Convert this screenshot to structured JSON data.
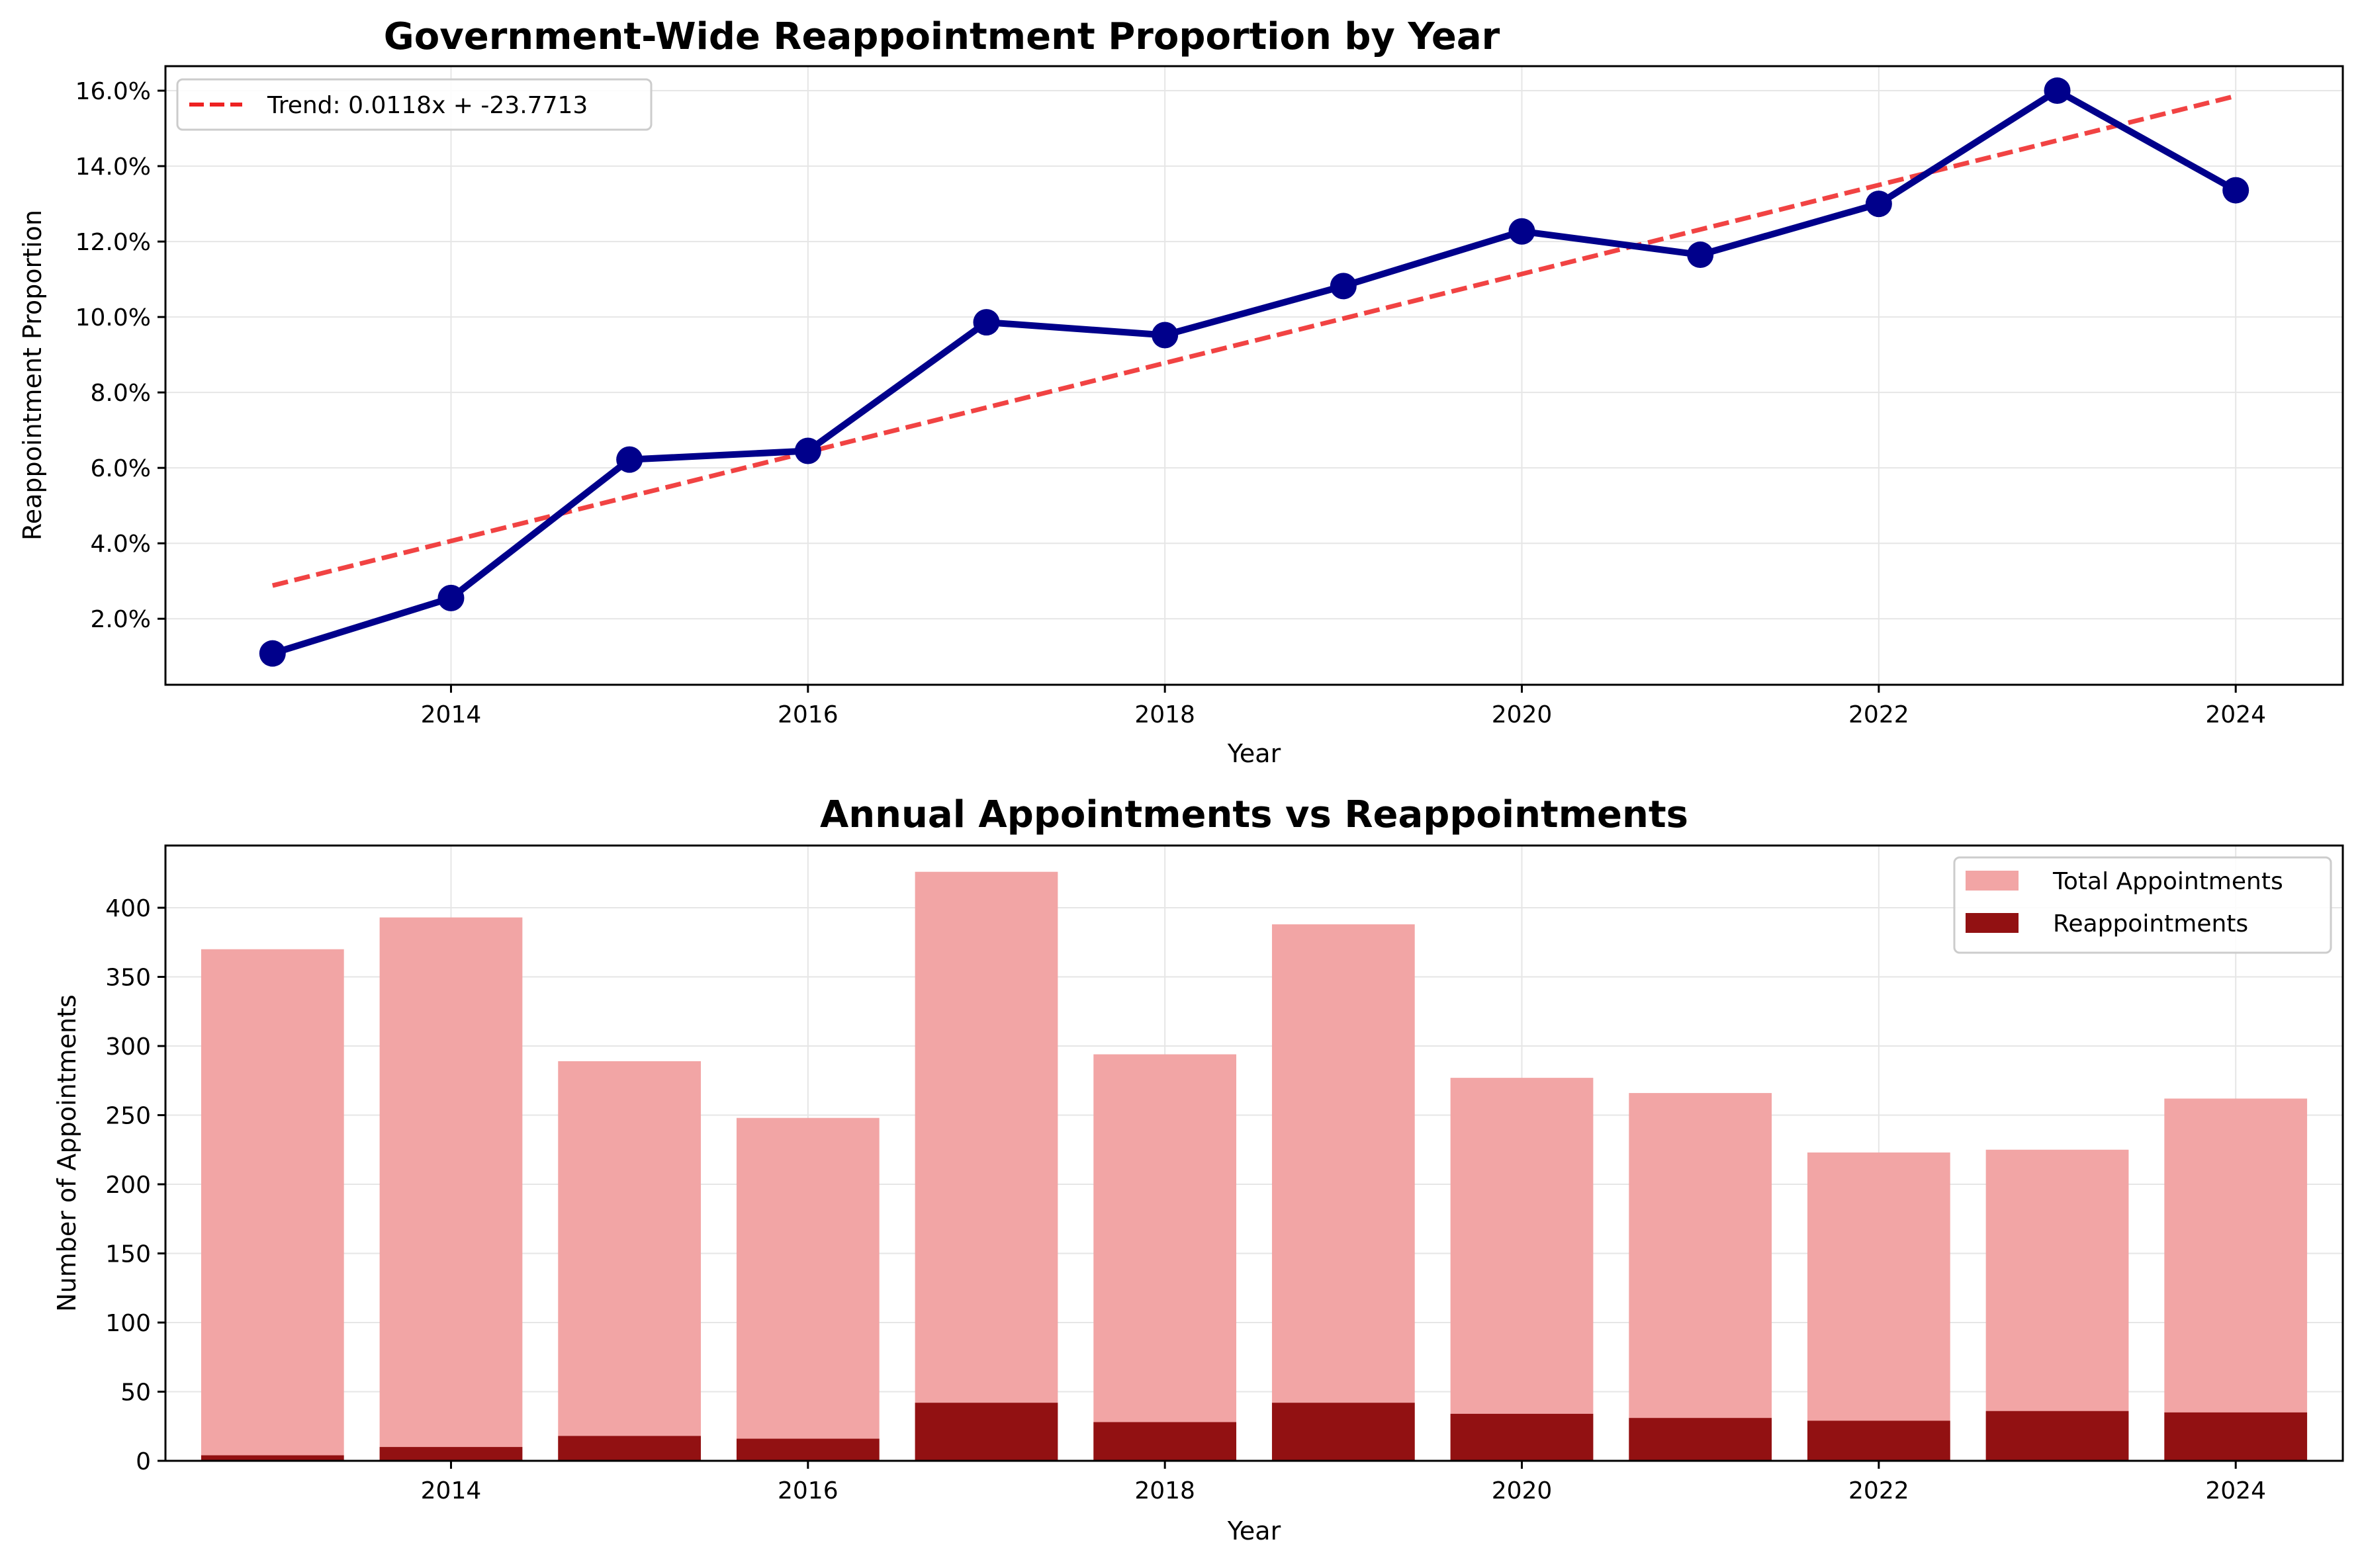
{
  "chart_data": [
    {
      "type": "line",
      "title": "Government-Wide Reappointment Proportion by Year",
      "xlabel": "Year",
      "ylabel": "Reappointment Proportion",
      "x": [
        2013,
        2014,
        2015,
        2016,
        2017,
        2018,
        2019,
        2020,
        2021,
        2022,
        2023,
        2024
      ],
      "xlim": [
        2012.4,
        2024.6
      ],
      "ylim": [
        0.0025,
        0.1665
      ],
      "xticks": [
        2014,
        2016,
        2018,
        2020,
        2022,
        2024
      ],
      "yticks": [
        0.02,
        0.04,
        0.06,
        0.08,
        0.1,
        0.12,
        0.14,
        0.16
      ],
      "yticklabels": [
        "2.0%",
        "4.0%",
        "6.0%",
        "8.0%",
        "10.0%",
        "12.0%",
        "14.0%",
        "16.0%"
      ],
      "grid": true,
      "legend_position": "top-left",
      "series": [
        {
          "values": [
            0.0108,
            0.0255,
            0.0622,
            0.0645,
            0.0986,
            0.0952,
            0.1082,
            0.1227,
            0.1165,
            0.13,
            0.16,
            0.1336
          ],
          "color": "#00008b",
          "style": "solid-with-markers"
        },
        {
          "name": "Trend: 0.0118x + -23.7713",
          "values": [
            0.0288,
            0.0406,
            0.0524,
            0.0642,
            0.076,
            0.0878,
            0.0996,
            0.1114,
            0.1232,
            0.135,
            0.1468,
            0.1586
          ],
          "color": "#ee2222",
          "style": "dashed"
        }
      ]
    },
    {
      "type": "bar",
      "title": "Annual Appointments vs Reappointments",
      "xlabel": "Year",
      "ylabel": "Number of Appointments",
      "categories": [
        2013,
        2014,
        2015,
        2016,
        2017,
        2018,
        2019,
        2020,
        2021,
        2022,
        2023,
        2024
      ],
      "xlim": [
        2012.4,
        2024.6
      ],
      "ylim": [
        0,
        445
      ],
      "xticks": [
        2014,
        2016,
        2018,
        2020,
        2022,
        2024
      ],
      "yticks": [
        0,
        50,
        100,
        150,
        200,
        250,
        300,
        350,
        400
      ],
      "grid": true,
      "legend_position": "top-right",
      "series": [
        {
          "name": "Total Appointments",
          "values": [
            370,
            393,
            289,
            248,
            426,
            294,
            388,
            277,
            266,
            223,
            225,
            262
          ],
          "color": "#f2a5a5"
        },
        {
          "name": "Reappointments",
          "values": [
            4,
            10,
            18,
            16,
            42,
            28,
            42,
            34,
            31,
            29,
            36,
            35
          ],
          "color": "#921112"
        }
      ]
    }
  ]
}
